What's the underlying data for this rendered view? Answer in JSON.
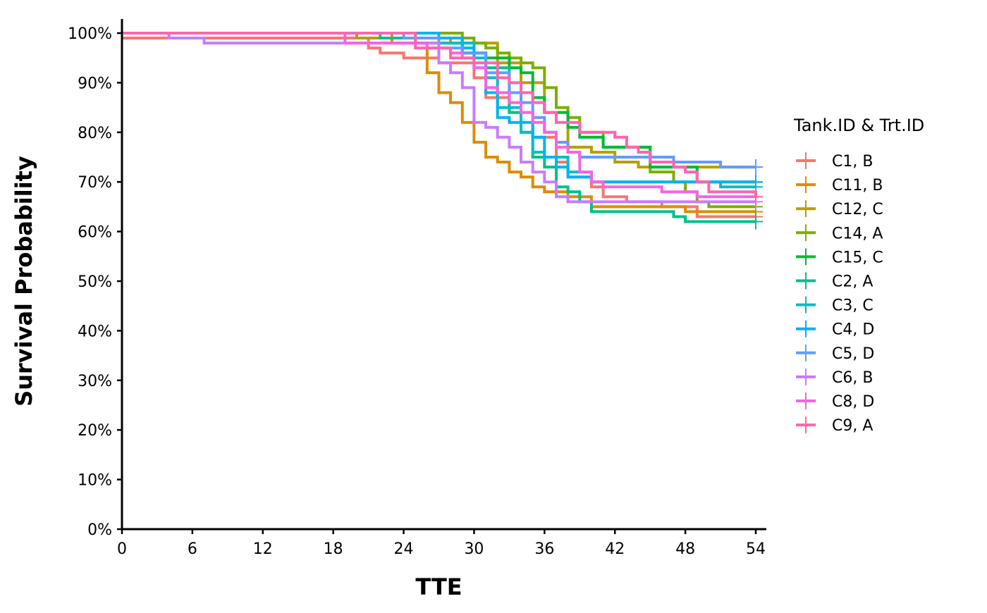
{
  "chart_data": {
    "type": "line",
    "subtype": "kaplan-meier step survival curves",
    "xlabel": "TTE",
    "ylabel": "Survival Probability",
    "xlim": [
      0,
      54
    ],
    "ylim": [
      0,
      1
    ],
    "x_ticks": [
      0,
      6,
      12,
      18,
      24,
      30,
      36,
      42,
      48,
      54
    ],
    "x_tick_labels": [
      "0",
      "6",
      "12",
      "18",
      "24",
      "30",
      "36",
      "42",
      "48",
      "54"
    ],
    "y_ticks": [
      0,
      0.1,
      0.2,
      0.3,
      0.4,
      0.5,
      0.6,
      0.7,
      0.8,
      0.9,
      1.0
    ],
    "y_tick_labels": [
      "0%",
      "10%",
      "20%",
      "30%",
      "40%",
      "50%",
      "60%",
      "70%",
      "80%",
      "90%",
      "100%"
    ],
    "grid": false,
    "legend": {
      "title": "Tank.ID & Trt.ID",
      "position": "right"
    },
    "series": [
      {
        "name": "C1, B",
        "color": "#F8766D",
        "x": [
          0,
          21,
          22,
          24,
          27,
          30,
          31,
          33,
          35,
          37,
          38,
          40,
          41,
          43,
          46,
          49,
          54
        ],
        "y": [
          0.99,
          0.97,
          0.96,
          0.95,
          0.94,
          0.91,
          0.87,
          0.84,
          0.79,
          0.74,
          0.71,
          0.69,
          0.67,
          0.66,
          0.65,
          0.63,
          0.63
        ]
      },
      {
        "name": "C11, B",
        "color": "#DE8C00",
        "x": [
          0,
          23,
          26,
          27,
          28,
          29,
          30,
          31,
          32,
          33,
          34,
          35,
          36,
          38,
          40,
          48,
          54
        ],
        "y": [
          1.0,
          0.98,
          0.92,
          0.88,
          0.86,
          0.82,
          0.78,
          0.75,
          0.74,
          0.72,
          0.71,
          0.69,
          0.68,
          0.67,
          0.65,
          0.64,
          0.64
        ]
      },
      {
        "name": "C12, C",
        "color": "#B79F00",
        "x": [
          0,
          20,
          28,
          32,
          34,
          36,
          38,
          40,
          42,
          44,
          46,
          51,
          54
        ],
        "y": [
          1.0,
          0.99,
          0.98,
          0.94,
          0.9,
          0.84,
          0.77,
          0.76,
          0.74,
          0.73,
          0.73,
          0.73,
          0.73
        ]
      },
      {
        "name": "C14, A",
        "color": "#7CAE00",
        "x": [
          0,
          29,
          30,
          31,
          32,
          33,
          34,
          35,
          36,
          37,
          38,
          39,
          41,
          45,
          47,
          48,
          49,
          50,
          54
        ],
        "y": [
          1.0,
          0.99,
          0.98,
          0.97,
          0.96,
          0.95,
          0.94,
          0.93,
          0.89,
          0.85,
          0.83,
          0.8,
          0.77,
          0.72,
          0.7,
          0.68,
          0.66,
          0.65,
          0.65
        ]
      },
      {
        "name": "C15, C",
        "color": "#00BA38",
        "x": [
          0,
          27,
          29,
          31,
          33,
          34,
          35,
          36,
          38,
          39,
          41,
          45,
          49,
          54
        ],
        "y": [
          1.0,
          0.98,
          0.96,
          0.95,
          0.93,
          0.92,
          0.87,
          0.84,
          0.81,
          0.79,
          0.77,
          0.73,
          0.7,
          0.7
        ]
      },
      {
        "name": "C2, A",
        "color": "#00C08B",
        "x": [
          0,
          22,
          29,
          31,
          33,
          34,
          35,
          36,
          37,
          38,
          39,
          40,
          47,
          48,
          54
        ],
        "y": [
          1.0,
          0.99,
          0.96,
          0.93,
          0.84,
          0.8,
          0.75,
          0.73,
          0.69,
          0.68,
          0.66,
          0.64,
          0.63,
          0.62,
          0.62
        ]
      },
      {
        "name": "C3, C",
        "color": "#00BFC4",
        "x": [
          0,
          25,
          30,
          31,
          32,
          34,
          35,
          36,
          38,
          40,
          44,
          46,
          48,
          51,
          54
        ],
        "y": [
          1.0,
          0.98,
          0.95,
          0.91,
          0.85,
          0.8,
          0.76,
          0.75,
          0.72,
          0.7,
          0.7,
          0.7,
          0.7,
          0.69,
          0.69
        ]
      },
      {
        "name": "C4, D",
        "color": "#00B4F0",
        "x": [
          0,
          27,
          29,
          30,
          31,
          32,
          33,
          35,
          36,
          37,
          38,
          39,
          40,
          54
        ],
        "y": [
          1.0,
          0.99,
          0.97,
          0.93,
          0.88,
          0.83,
          0.82,
          0.79,
          0.75,
          0.73,
          0.71,
          0.71,
          0.7,
          0.7
        ]
      },
      {
        "name": "C5, D",
        "color": "#619CFF",
        "x": [
          0,
          24,
          27,
          29,
          31,
          33,
          34,
          35,
          36,
          37,
          38,
          39,
          47,
          51,
          54
        ],
        "y": [
          1.0,
          0.99,
          0.97,
          0.96,
          0.92,
          0.88,
          0.86,
          0.83,
          0.8,
          0.78,
          0.76,
          0.75,
          0.74,
          0.73,
          0.73
        ]
      },
      {
        "name": "C6, B",
        "color": "#C77CFF",
        "x": [
          0,
          4,
          7,
          27,
          28,
          29,
          30,
          31,
          32,
          33,
          34,
          35,
          36,
          37,
          38,
          54
        ],
        "y": [
          1.0,
          0.99,
          0.98,
          0.94,
          0.92,
          0.89,
          0.82,
          0.81,
          0.79,
          0.77,
          0.74,
          0.72,
          0.7,
          0.67,
          0.66,
          0.66
        ]
      },
      {
        "name": "C8, D",
        "color": "#F564E3",
        "x": [
          0,
          19,
          26,
          28,
          29,
          30,
          31,
          32,
          33,
          34,
          35,
          36,
          37,
          38,
          39,
          40,
          41,
          46,
          49,
          54
        ],
        "y": [
          1.0,
          0.98,
          0.97,
          0.96,
          0.95,
          0.93,
          0.89,
          0.88,
          0.86,
          0.84,
          0.82,
          0.8,
          0.77,
          0.76,
          0.72,
          0.7,
          0.69,
          0.68,
          0.67,
          0.67
        ]
      },
      {
        "name": "C9, A",
        "color": "#FF64B0",
        "x": [
          0,
          25,
          28,
          30,
          32,
          33,
          34,
          35,
          36,
          37,
          39,
          42,
          43,
          44,
          45,
          47,
          48,
          49,
          50,
          54
        ],
        "y": [
          1.0,
          0.97,
          0.95,
          0.94,
          0.91,
          0.9,
          0.88,
          0.86,
          0.84,
          0.82,
          0.8,
          0.79,
          0.77,
          0.76,
          0.74,
          0.73,
          0.72,
          0.7,
          0.68,
          0.67
        ]
      }
    ]
  }
}
